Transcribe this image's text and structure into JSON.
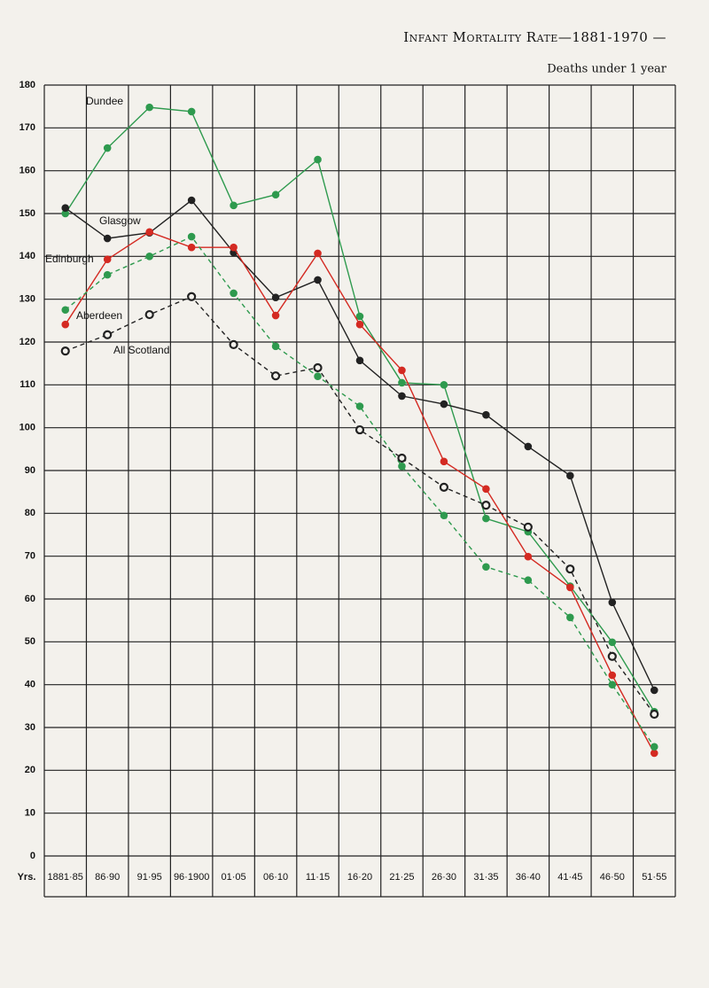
{
  "chart_data": {
    "type": "line",
    "title": "Infant Mortality Rate—1881-1970 —",
    "y_label": "Deaths under 1 year",
    "x_label": "Yrs.",
    "categories": [
      "1881·85",
      "86·90",
      "91·95",
      "96·1900",
      "01·05",
      "06·10",
      "11·15",
      "16·20",
      "21·25",
      "26·30",
      "31·35",
      "36·40",
      "41·45",
      "46·50",
      "51·55"
    ],
    "ylim": [
      0,
      180
    ],
    "yticks": [
      0,
      10,
      20,
      30,
      40,
      50,
      60,
      70,
      80,
      90,
      100,
      110,
      120,
      130,
      140,
      150,
      160,
      170,
      180
    ],
    "grid": true,
    "series": [
      {
        "name": "Dundee",
        "color": "#2e9a4e",
        "line_style": "solid",
        "marker": "filled",
        "values": [
          150,
          165.3,
          174.8,
          173.8,
          151.9,
          154.4,
          162.6,
          126,
          110.5,
          110,
          78.8,
          75.7,
          63,
          49.9,
          33.7
        ]
      },
      {
        "name": "Glasgow",
        "color": "#222222",
        "line_style": "solid",
        "marker": "filled",
        "values": [
          151.3,
          144.2,
          145.5,
          153.1,
          140.9,
          130.4,
          134.5,
          115.7,
          107.4,
          105.5,
          103,
          95.6,
          88.8,
          59.2,
          38.7
        ]
      },
      {
        "name": "Edinburgh",
        "color": "#d42a22",
        "line_style": "solid",
        "marker": "filled",
        "values": [
          124.1,
          139.3,
          145.7,
          142.1,
          142.1,
          126.2,
          140.7,
          124.1,
          113.4,
          92.1,
          85.7,
          69.9,
          62.7,
          42.2,
          24
        ]
      },
      {
        "name": "Aberdeen",
        "color": "#2e9a4e",
        "line_style": "dashed",
        "marker": "filled",
        "values": [
          127.5,
          135.7,
          140,
          144.6,
          131.4,
          119,
          112,
          105,
          91,
          79.5,
          67.5,
          64.4,
          55.7,
          40,
          25.5
        ]
      },
      {
        "name": "All Scotland",
        "color": "#222222",
        "line_style": "dashed",
        "marker": "open",
        "values": [
          117.9,
          121.7,
          126.4,
          130.6,
          119.4,
          112.1,
          114,
          99.5,
          92.9,
          86.1,
          81.9,
          76.8,
          67,
          46.6,
          33.1
        ]
      }
    ]
  }
}
